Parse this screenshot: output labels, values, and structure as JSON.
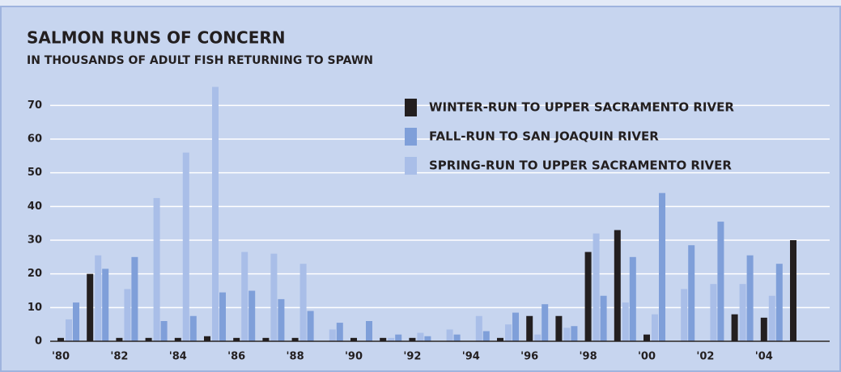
{
  "chart_data": {
    "type": "bar",
    "title": "SALMON RUNS OF CONCERN",
    "subtitle": "IN THOUSANDS OF ADULT FISH RETURNING TO SPAWN",
    "categories": [
      "'80",
      null,
      "'82",
      null,
      "'84",
      null,
      "'86",
      null,
      "'88",
      null,
      "'90",
      null,
      "'92",
      null,
      "'94",
      null,
      "'96",
      null,
      "'98",
      null,
      "'00",
      null,
      "'02",
      null,
      "'04",
      null
    ],
    "series": [
      {
        "name": "WINTER-RUN TO UPPER SACRAMENTO RIVER",
        "color": "#231f20",
        "values": [
          1,
          20,
          1,
          1,
          1,
          1.5,
          1,
          1,
          1,
          0,
          1,
          1,
          1,
          0,
          0,
          1,
          7.5,
          7.5,
          26.5,
          33,
          2,
          0,
          0,
          8,
          7,
          30
        ]
      },
      {
        "name": "FALL-RUN TO SAN JOAQUIN RIVER",
        "color": "#7f9fd9",
        "values": [
          11.5,
          21.5,
          25,
          6,
          7.5,
          14.5,
          15,
          12.5,
          9,
          5.5,
          6,
          2,
          1.5,
          2,
          3,
          8.5,
          11,
          4.5,
          13.5,
          25,
          44,
          28.5,
          35.5,
          25.5,
          23,
          null
        ]
      },
      {
        "name": "SPRING-RUN TO UPPER SACRAMENTO RIVER",
        "color": "#a9bee8",
        "values": [
          6.5,
          25.5,
          15.5,
          42.5,
          56,
          75.5,
          26.5,
          26,
          23,
          3.5,
          0,
          1,
          2.5,
          3.5,
          7.5,
          5,
          2,
          4,
          32,
          11.5,
          8,
          15.5,
          17,
          17,
          13.5,
          null
        ]
      }
    ],
    "ylim": [
      0,
      78
    ],
    "yticks": [
      0,
      10,
      20,
      30,
      40,
      50,
      60,
      70
    ],
    "grid": true
  }
}
